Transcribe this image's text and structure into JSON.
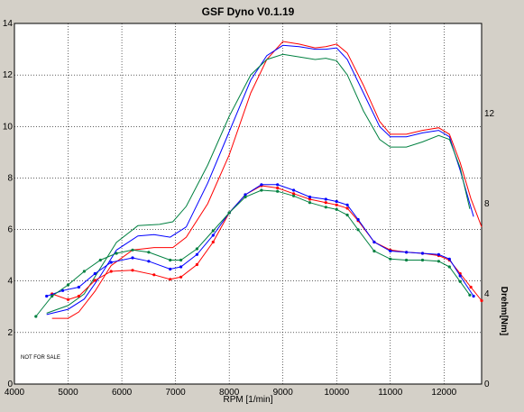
{
  "chart_data": {
    "type": "line",
    "title": "GSF Dyno V0.1.19",
    "xlabel": "RPM [1/min]",
    "ylabel_left": "",
    "ylabel_right": "Drehm[Nm]",
    "note": "NOT FOR SALE",
    "xlim": [
      4000,
      12700
    ],
    "ylim_left": [
      0,
      14
    ],
    "ylim_right": [
      0,
      16
    ],
    "x_ticks": [
      4000,
      5000,
      6000,
      7000,
      8000,
      9000,
      10000,
      11000,
      12000
    ],
    "y_ticks_left": [
      0,
      2,
      4,
      6,
      8,
      10,
      12,
      14
    ],
    "y_ticks_right": [
      0,
      4,
      8,
      12
    ],
    "grid": true,
    "legend": "none",
    "power_series": [
      {
        "color": "#ff0000",
        "axis": "left",
        "points": [
          [
            4700,
            2.55
          ],
          [
            5000,
            2.55
          ],
          [
            5200,
            2.8
          ],
          [
            5500,
            3.6
          ],
          [
            5800,
            4.6
          ],
          [
            6200,
            5.2
          ],
          [
            6600,
            5.3
          ],
          [
            6950,
            5.3
          ],
          [
            7200,
            5.7
          ],
          [
            7600,
            7.0
          ],
          [
            8000,
            8.9
          ],
          [
            8400,
            11.3
          ],
          [
            8700,
            12.6
          ],
          [
            9000,
            13.3
          ],
          [
            9300,
            13.2
          ],
          [
            9600,
            13.05
          ],
          [
            9800,
            13.1
          ],
          [
            10000,
            13.2
          ],
          [
            10200,
            12.85
          ],
          [
            10500,
            11.6
          ],
          [
            10800,
            10.2
          ],
          [
            11000,
            9.7
          ],
          [
            11300,
            9.7
          ],
          [
            11600,
            9.85
          ],
          [
            11900,
            9.95
          ],
          [
            12100,
            9.7
          ],
          [
            12300,
            8.6
          ],
          [
            12500,
            7.2
          ],
          [
            12700,
            6.1
          ]
        ]
      },
      {
        "color": "#0000ff",
        "axis": "left",
        "points": [
          [
            4600,
            2.7
          ],
          [
            5000,
            2.9
          ],
          [
            5300,
            3.3
          ],
          [
            5600,
            4.2
          ],
          [
            5900,
            5.2
          ],
          [
            6300,
            5.75
          ],
          [
            6600,
            5.8
          ],
          [
            6900,
            5.7
          ],
          [
            7200,
            6.1
          ],
          [
            7600,
            7.8
          ],
          [
            8000,
            9.8
          ],
          [
            8400,
            11.8
          ],
          [
            8700,
            12.75
          ],
          [
            9000,
            13.15
          ],
          [
            9300,
            13.1
          ],
          [
            9600,
            13.0
          ],
          [
            9800,
            13.0
          ],
          [
            10000,
            13.05
          ],
          [
            10200,
            12.6
          ],
          [
            10500,
            11.3
          ],
          [
            10800,
            10.0
          ],
          [
            11000,
            9.6
          ],
          [
            11300,
            9.6
          ],
          [
            11600,
            9.75
          ],
          [
            11900,
            9.85
          ],
          [
            12100,
            9.6
          ],
          [
            12300,
            8.3
          ],
          [
            12550,
            6.5
          ]
        ]
      },
      {
        "color": "#008040",
        "axis": "left",
        "points": [
          [
            4600,
            2.75
          ],
          [
            5000,
            3.05
          ],
          [
            5300,
            3.5
          ],
          [
            5600,
            4.5
          ],
          [
            5900,
            5.5
          ],
          [
            6300,
            6.15
          ],
          [
            6700,
            6.2
          ],
          [
            6950,
            6.3
          ],
          [
            7200,
            6.9
          ],
          [
            7600,
            8.5
          ],
          [
            8000,
            10.4
          ],
          [
            8400,
            12.0
          ],
          [
            8700,
            12.6
          ],
          [
            9000,
            12.8
          ],
          [
            9300,
            12.7
          ],
          [
            9600,
            12.6
          ],
          [
            9800,
            12.65
          ],
          [
            10000,
            12.55
          ],
          [
            10200,
            12.0
          ],
          [
            10500,
            10.6
          ],
          [
            10800,
            9.5
          ],
          [
            11000,
            9.2
          ],
          [
            11300,
            9.2
          ],
          [
            11600,
            9.4
          ],
          [
            11900,
            9.65
          ],
          [
            12100,
            9.5
          ],
          [
            12300,
            8.4
          ],
          [
            12480,
            6.8
          ]
        ]
      }
    ],
    "torque_series": [
      {
        "color": "#ff0000",
        "axis": "right",
        "points": [
          [
            4700,
            4.0
          ],
          [
            5000,
            3.75
          ],
          [
            5200,
            3.9
          ],
          [
            5500,
            4.6
          ],
          [
            5800,
            5.0
          ],
          [
            6200,
            5.05
          ],
          [
            6600,
            4.85
          ],
          [
            6900,
            4.65
          ],
          [
            7100,
            4.75
          ],
          [
            7400,
            5.3
          ],
          [
            7700,
            6.3
          ],
          [
            8000,
            7.6
          ],
          [
            8300,
            8.4
          ],
          [
            8600,
            8.8
          ],
          [
            8900,
            8.7
          ],
          [
            9200,
            8.45
          ],
          [
            9500,
            8.2
          ],
          [
            9800,
            8.05
          ],
          [
            10000,
            7.95
          ],
          [
            10200,
            7.8
          ],
          [
            10400,
            7.25
          ],
          [
            10700,
            6.3
          ],
          [
            11000,
            5.95
          ],
          [
            11300,
            5.85
          ],
          [
            11600,
            5.8
          ],
          [
            11900,
            5.7
          ],
          [
            12100,
            5.5
          ],
          [
            12300,
            4.9
          ],
          [
            12500,
            4.3
          ],
          [
            12700,
            3.7
          ]
        ]
      },
      {
        "color": "#0000ff",
        "axis": "right",
        "points": [
          [
            4600,
            3.9
          ],
          [
            4900,
            4.15
          ],
          [
            5200,
            4.3
          ],
          [
            5500,
            4.9
          ],
          [
            5800,
            5.4
          ],
          [
            6200,
            5.6
          ],
          [
            6500,
            5.45
          ],
          [
            6900,
            5.1
          ],
          [
            7100,
            5.2
          ],
          [
            7400,
            5.75
          ],
          [
            7700,
            6.6
          ],
          [
            8000,
            7.6
          ],
          [
            8300,
            8.4
          ],
          [
            8600,
            8.85
          ],
          [
            8900,
            8.85
          ],
          [
            9200,
            8.6
          ],
          [
            9500,
            8.3
          ],
          [
            9800,
            8.2
          ],
          [
            10000,
            8.1
          ],
          [
            10200,
            7.95
          ],
          [
            10400,
            7.3
          ],
          [
            10700,
            6.3
          ],
          [
            11000,
            5.9
          ],
          [
            11300,
            5.85
          ],
          [
            11600,
            5.8
          ],
          [
            11900,
            5.75
          ],
          [
            12100,
            5.55
          ],
          [
            12300,
            4.8
          ],
          [
            12550,
            3.9
          ]
        ]
      },
      {
        "color": "#008040",
        "axis": "right",
        "points": [
          [
            4400,
            3.0
          ],
          [
            4700,
            3.9
          ],
          [
            5000,
            4.4
          ],
          [
            5300,
            5.0
          ],
          [
            5600,
            5.5
          ],
          [
            5900,
            5.8
          ],
          [
            6200,
            5.95
          ],
          [
            6500,
            5.85
          ],
          [
            6900,
            5.5
          ],
          [
            7100,
            5.5
          ],
          [
            7400,
            6.0
          ],
          [
            7700,
            6.8
          ],
          [
            8000,
            7.6
          ],
          [
            8300,
            8.3
          ],
          [
            8600,
            8.6
          ],
          [
            8900,
            8.55
          ],
          [
            9200,
            8.35
          ],
          [
            9500,
            8.05
          ],
          [
            9800,
            7.85
          ],
          [
            10000,
            7.75
          ],
          [
            10200,
            7.5
          ],
          [
            10400,
            6.85
          ],
          [
            10700,
            5.9
          ],
          [
            11000,
            5.55
          ],
          [
            11300,
            5.5
          ],
          [
            11600,
            5.5
          ],
          [
            11900,
            5.45
          ],
          [
            12100,
            5.2
          ],
          [
            12300,
            4.55
          ],
          [
            12480,
            3.95
          ]
        ]
      }
    ]
  }
}
